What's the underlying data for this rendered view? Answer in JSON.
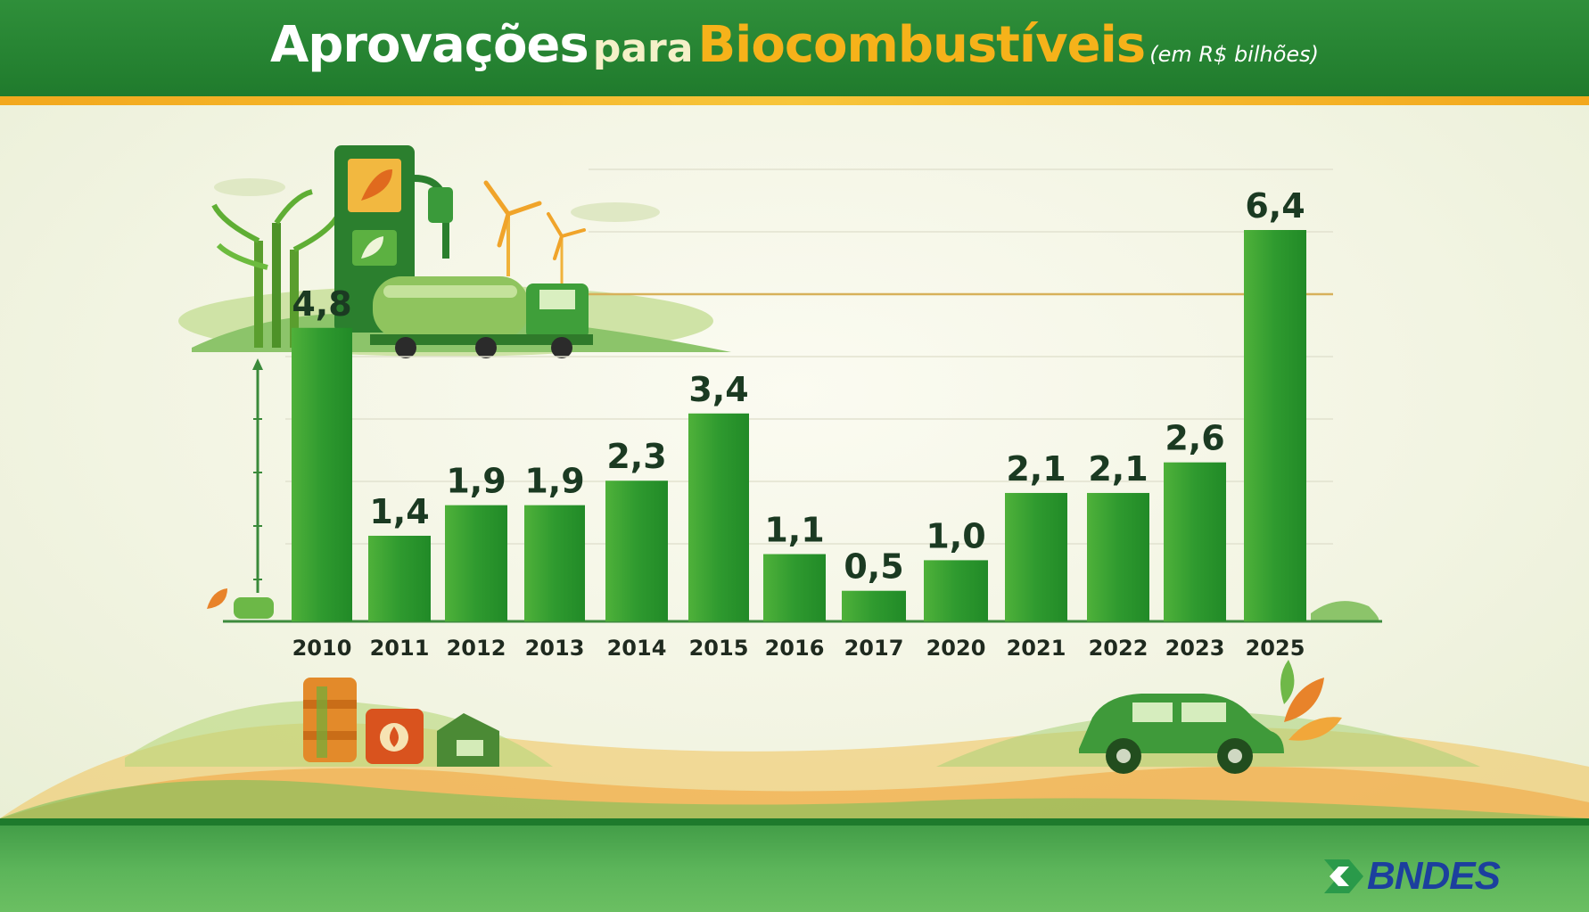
{
  "header": {
    "title_part1": "Aprovações",
    "title_part2": "para",
    "title_part3": "Biocombustíveis",
    "unit": "(em R$ bilhões)"
  },
  "footer": {
    "brand": "BNDES"
  },
  "colors": {
    "header_green": "#1f7a2c",
    "accent_orange": "#f6b21a",
    "bar_green": "#2e9a2e",
    "bar_light_green": "#5dbb3a",
    "highlight_year": "#a33a1a",
    "brand_blue": "#1c3f9e"
  },
  "icons": [
    "fuel-pump-icon",
    "leaf-icon",
    "sugarcane-icon",
    "wind-turbine-icon",
    "tanker-truck-icon",
    "barrel-icon",
    "fuel-can-icon",
    "house-icon",
    "car-icon",
    "bndes-logo-icon"
  ],
  "chart_data": {
    "type": "bar",
    "title": "Aprovações para Biocombustíveis",
    "subtitle": "(em R$ bilhões)",
    "categories": [
      "2010",
      "2011",
      "2012",
      "2013",
      "2014",
      "2015",
      "2016",
      "2017",
      "2020",
      "2021",
      "2022",
      "2023",
      "2025"
    ],
    "values": [
      4.8,
      1.4,
      1.9,
      1.9,
      2.3,
      3.4,
      1.1,
      0.5,
      1.0,
      2.1,
      2.1,
      2.6,
      6.4
    ],
    "value_labels": [
      "4,8",
      "1,4",
      "1,9",
      "1,9",
      "2,3",
      "3,4",
      "1,1",
      "0,5",
      "1,0",
      "2,1",
      "2,1",
      "2,6",
      "6,4"
    ],
    "highlight_category": "2010",
    "emphasized_category": "2025",
    "grid": true
  }
}
